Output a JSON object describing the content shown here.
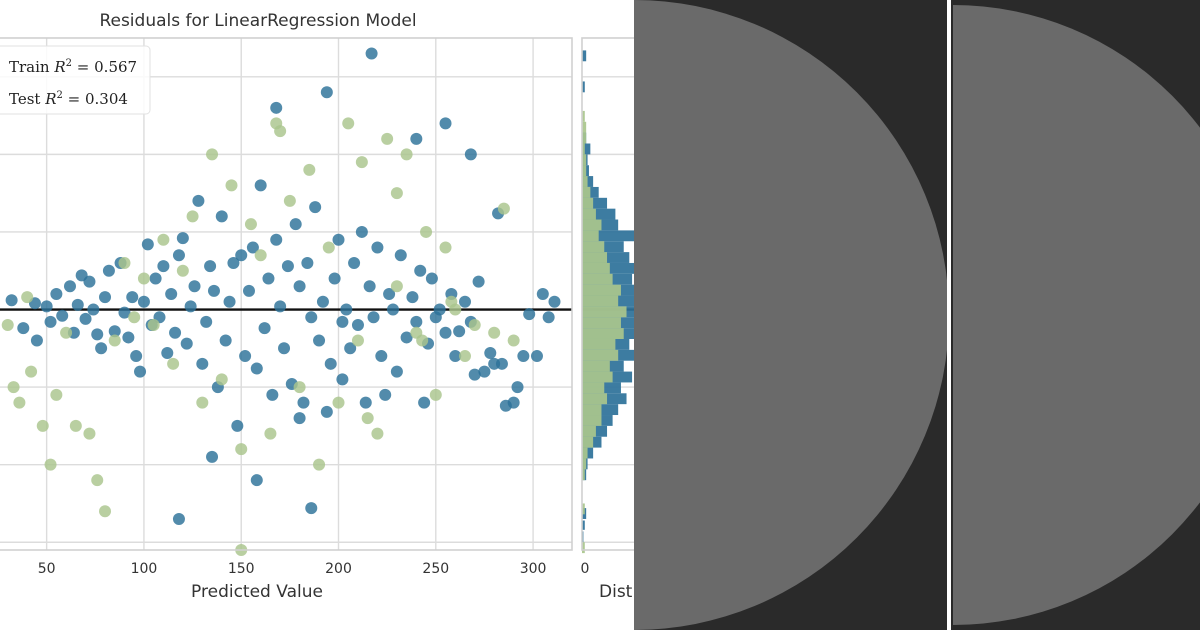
{
  "chart_data": {
    "type": "scatter",
    "title": "Residuals for LinearRegression Model",
    "xlabel": "Predicted Value",
    "hist_xlabel": "Dist",
    "xlim": [
      25,
      320
    ],
    "ylim": [
      -155,
      175
    ],
    "xticks": [
      50,
      100,
      150,
      200,
      250,
      300
    ],
    "yticks": [
      -150,
      -100,
      -50,
      0,
      50,
      100,
      150
    ],
    "hist_ticks": [
      "0"
    ],
    "grid": true,
    "zero_line": 0,
    "legend": {
      "placement": "top-left",
      "entries": [
        {
          "label": "Train R² = 0.567",
          "prefix": "Train ",
          "suffix": " = 0.567",
          "color": "#2c7199"
        },
        {
          "label": "Test R² = 0.304",
          "prefix": "Test ",
          "suffix": " = 0.304",
          "color": "#a9c58c"
        }
      ]
    },
    "colors": {
      "train": "#2c7199",
      "test": "#a9c58c",
      "zero_line": "#111111"
    },
    "series": [
      {
        "name": "Train",
        "points": [
          [
            32,
            6
          ],
          [
            38,
            -12
          ],
          [
            44,
            4
          ],
          [
            45,
            -20
          ],
          [
            50,
            2
          ],
          [
            52,
            -8
          ],
          [
            55,
            10
          ],
          [
            58,
            -4
          ],
          [
            62,
            15
          ],
          [
            64,
            -15
          ],
          [
            66,
            3
          ],
          [
            68,
            22
          ],
          [
            70,
            -6
          ],
          [
            72,
            18
          ],
          [
            74,
            0
          ],
          [
            76,
            -16
          ],
          [
            78,
            -25
          ],
          [
            80,
            8
          ],
          [
            82,
            25
          ],
          [
            85,
            -14
          ],
          [
            88,
            30
          ],
          [
            90,
            -2
          ],
          [
            92,
            -18
          ],
          [
            94,
            8
          ],
          [
            96,
            -30
          ],
          [
            98,
            -40
          ],
          [
            100,
            5
          ],
          [
            102,
            42
          ],
          [
            104,
            -10
          ],
          [
            106,
            20
          ],
          [
            108,
            -5
          ],
          [
            110,
            28
          ],
          [
            112,
            -28
          ],
          [
            114,
            10
          ],
          [
            116,
            -15
          ],
          [
            118,
            35
          ],
          [
            120,
            46
          ],
          [
            122,
            -22
          ],
          [
            124,
            2
          ],
          [
            126,
            15
          ],
          [
            128,
            70
          ],
          [
            130,
            -35
          ],
          [
            132,
            -8
          ],
          [
            134,
            28
          ],
          [
            136,
            12
          ],
          [
            138,
            -50
          ],
          [
            140,
            60
          ],
          [
            142,
            -20
          ],
          [
            144,
            5
          ],
          [
            146,
            30
          ],
          [
            148,
            -75
          ],
          [
            150,
            35
          ],
          [
            152,
            -30
          ],
          [
            154,
            12
          ],
          [
            156,
            40
          ],
          [
            158,
            -38
          ],
          [
            160,
            80
          ],
          [
            162,
            -12
          ],
          [
            164,
            20
          ],
          [
            166,
            -55
          ],
          [
            168,
            45
          ],
          [
            170,
            2
          ],
          [
            172,
            -25
          ],
          [
            174,
            28
          ],
          [
            176,
            -48
          ],
          [
            178,
            55
          ],
          [
            180,
            15
          ],
          [
            182,
            -60
          ],
          [
            184,
            30
          ],
          [
            186,
            -5
          ],
          [
            188,
            66
          ],
          [
            190,
            -20
          ],
          [
            192,
            5
          ],
          [
            194,
            -66
          ],
          [
            196,
            -35
          ],
          [
            198,
            20
          ],
          [
            200,
            45
          ],
          [
            202,
            -45
          ],
          [
            204,
            0
          ],
          [
            206,
            -25
          ],
          [
            208,
            30
          ],
          [
            210,
            -10
          ],
          [
            212,
            50
          ],
          [
            214,
            -60
          ],
          [
            216,
            15
          ],
          [
            218,
            -5
          ],
          [
            220,
            40
          ],
          [
            222,
            -30
          ],
          [
            224,
            -55
          ],
          [
            226,
            10
          ],
          [
            228,
            0
          ],
          [
            230,
            -40
          ],
          [
            232,
            35
          ],
          [
            235,
            -18
          ],
          [
            238,
            8
          ],
          [
            240,
            -8
          ],
          [
            242,
            25
          ],
          [
            244,
            -60
          ],
          [
            246,
            -22
          ],
          [
            248,
            20
          ],
          [
            250,
            -5
          ],
          [
            252,
            0
          ],
          [
            255,
            -15
          ],
          [
            258,
            10
          ],
          [
            260,
            -30
          ],
          [
            262,
            -14
          ],
          [
            265,
            5
          ],
          [
            268,
            -8
          ],
          [
            270,
            -42
          ],
          [
            272,
            18
          ],
          [
            275,
            -40
          ],
          [
            278,
            -28
          ],
          [
            280,
            -35
          ],
          [
            282,
            62
          ],
          [
            286,
            -62
          ],
          [
            290,
            -60
          ],
          [
            292,
            -50
          ],
          [
            295,
            -30
          ],
          [
            305,
            10
          ],
          [
            308,
            -5
          ],
          [
            311,
            5
          ],
          [
            118,
            -135
          ],
          [
            158,
            -110
          ],
          [
            268,
            100
          ],
          [
            255,
            120
          ],
          [
            186,
            -128
          ],
          [
            217,
            165
          ],
          [
            194,
            140
          ],
          [
            135,
            -95
          ],
          [
            240,
            110
          ],
          [
            168,
            130
          ],
          [
            298,
            -3
          ],
          [
            284,
            -35
          ],
          [
            302,
            -30
          ],
          [
            180,
            -70
          ],
          [
            202,
            -8
          ]
        ]
      },
      {
        "name": "Test",
        "points": [
          [
            30,
            -10
          ],
          [
            33,
            -50
          ],
          [
            36,
            -60
          ],
          [
            40,
            8
          ],
          [
            42,
            -40
          ],
          [
            48,
            -75
          ],
          [
            52,
            -100
          ],
          [
            55,
            -55
          ],
          [
            60,
            -15
          ],
          [
            65,
            -75
          ],
          [
            72,
            -80
          ],
          [
            76,
            -110
          ],
          [
            80,
            -130
          ],
          [
            85,
            -20
          ],
          [
            90,
            30
          ],
          [
            95,
            -5
          ],
          [
            100,
            20
          ],
          [
            105,
            -10
          ],
          [
            110,
            45
          ],
          [
            115,
            -35
          ],
          [
            120,
            25
          ],
          [
            125,
            60
          ],
          [
            130,
            -60
          ],
          [
            135,
            100
          ],
          [
            140,
            -45
          ],
          [
            145,
            80
          ],
          [
            150,
            -90
          ],
          [
            155,
            55
          ],
          [
            160,
            35
          ],
          [
            165,
            -80
          ],
          [
            170,
            115
          ],
          [
            175,
            70
          ],
          [
            180,
            -50
          ],
          [
            185,
            90
          ],
          [
            190,
            -100
          ],
          [
            195,
            40
          ],
          [
            200,
            -60
          ],
          [
            205,
            120
          ],
          [
            210,
            -20
          ],
          [
            215,
            -70
          ],
          [
            220,
            -80
          ],
          [
            225,
            110
          ],
          [
            230,
            75
          ],
          [
            235,
            100
          ],
          [
            240,
            -15
          ],
          [
            245,
            50
          ],
          [
            250,
            -55
          ],
          [
            255,
            40
          ],
          [
            260,
            0
          ],
          [
            265,
            -30
          ],
          [
            270,
            -10
          ],
          [
            280,
            -15
          ],
          [
            285,
            65
          ],
          [
            290,
            -20
          ],
          [
            150,
            -155
          ],
          [
            168,
            120
          ],
          [
            212,
            95
          ],
          [
            230,
            15
          ],
          [
            243,
            -20
          ],
          [
            258,
            5
          ]
        ]
      }
    ],
    "histograms": [
      {
        "name": "Train",
        "bins": [
          [
            -150,
            -143,
            1
          ],
          [
            -142,
            -136,
            2
          ],
          [
            -135,
            -128,
            3
          ],
          [
            -110,
            -103,
            3
          ],
          [
            -103,
            -96,
            4
          ],
          [
            -96,
            -89,
            8
          ],
          [
            -89,
            -82,
            14
          ],
          [
            -82,
            -75,
            18
          ],
          [
            -75,
            -68,
            22
          ],
          [
            -68,
            -61,
            26
          ],
          [
            -61,
            -54,
            32
          ],
          [
            -54,
            -47,
            28
          ],
          [
            -47,
            -40,
            36
          ],
          [
            -40,
            -33,
            30
          ],
          [
            -33,
            -26,
            40
          ],
          [
            -26,
            -19,
            34
          ],
          [
            -19,
            -12,
            42
          ],
          [
            -12,
            -5,
            44
          ],
          [
            -5,
            2,
            46
          ],
          [
            2,
            9,
            40
          ],
          [
            9,
            16,
            38
          ],
          [
            16,
            23,
            36
          ],
          [
            23,
            30,
            40
          ],
          [
            30,
            37,
            34
          ],
          [
            37,
            44,
            30
          ],
          [
            44,
            51,
            38
          ],
          [
            51,
            58,
            26
          ],
          [
            58,
            65,
            24
          ],
          [
            65,
            72,
            18
          ],
          [
            72,
            79,
            12
          ],
          [
            79,
            86,
            8
          ],
          [
            86,
            93,
            5
          ],
          [
            93,
            100,
            4
          ],
          [
            100,
            107,
            6
          ],
          [
            107,
            114,
            3
          ],
          [
            140,
            147,
            2
          ],
          [
            160,
            167,
            3
          ]
        ]
      },
      {
        "name": "Test",
        "bins": [
          [
            -157,
            -150,
            2
          ],
          [
            -132,
            -125,
            2
          ],
          [
            -110,
            -103,
            2
          ],
          [
            -103,
            -96,
            3
          ],
          [
            -96,
            -89,
            4
          ],
          [
            -89,
            -82,
            8
          ],
          [
            -82,
            -75,
            10
          ],
          [
            -75,
            -68,
            14
          ],
          [
            -68,
            -61,
            14
          ],
          [
            -61,
            -54,
            18
          ],
          [
            -54,
            -47,
            16
          ],
          [
            -47,
            -40,
            22
          ],
          [
            -40,
            -33,
            20
          ],
          [
            -33,
            -26,
            26
          ],
          [
            -26,
            -19,
            24
          ],
          [
            -19,
            -12,
            30
          ],
          [
            -12,
            -5,
            28
          ],
          [
            -5,
            2,
            32
          ],
          [
            2,
            9,
            26
          ],
          [
            9,
            16,
            28
          ],
          [
            16,
            23,
            22
          ],
          [
            23,
            30,
            20
          ],
          [
            30,
            37,
            18
          ],
          [
            37,
            44,
            16
          ],
          [
            44,
            51,
            12
          ],
          [
            51,
            58,
            14
          ],
          [
            58,
            65,
            10
          ],
          [
            65,
            72,
            8
          ],
          [
            72,
            79,
            6
          ],
          [
            79,
            86,
            4
          ],
          [
            86,
            93,
            3
          ],
          [
            93,
            100,
            3
          ],
          [
            100,
            107,
            2
          ],
          [
            107,
            114,
            3
          ],
          [
            114,
            121,
            3
          ],
          [
            121,
            128,
            2
          ]
        ]
      }
    ]
  },
  "dark_panels": {
    "background": "#2a2a2a",
    "disc": "#6a6a6a",
    "divider": "#ffffff"
  }
}
